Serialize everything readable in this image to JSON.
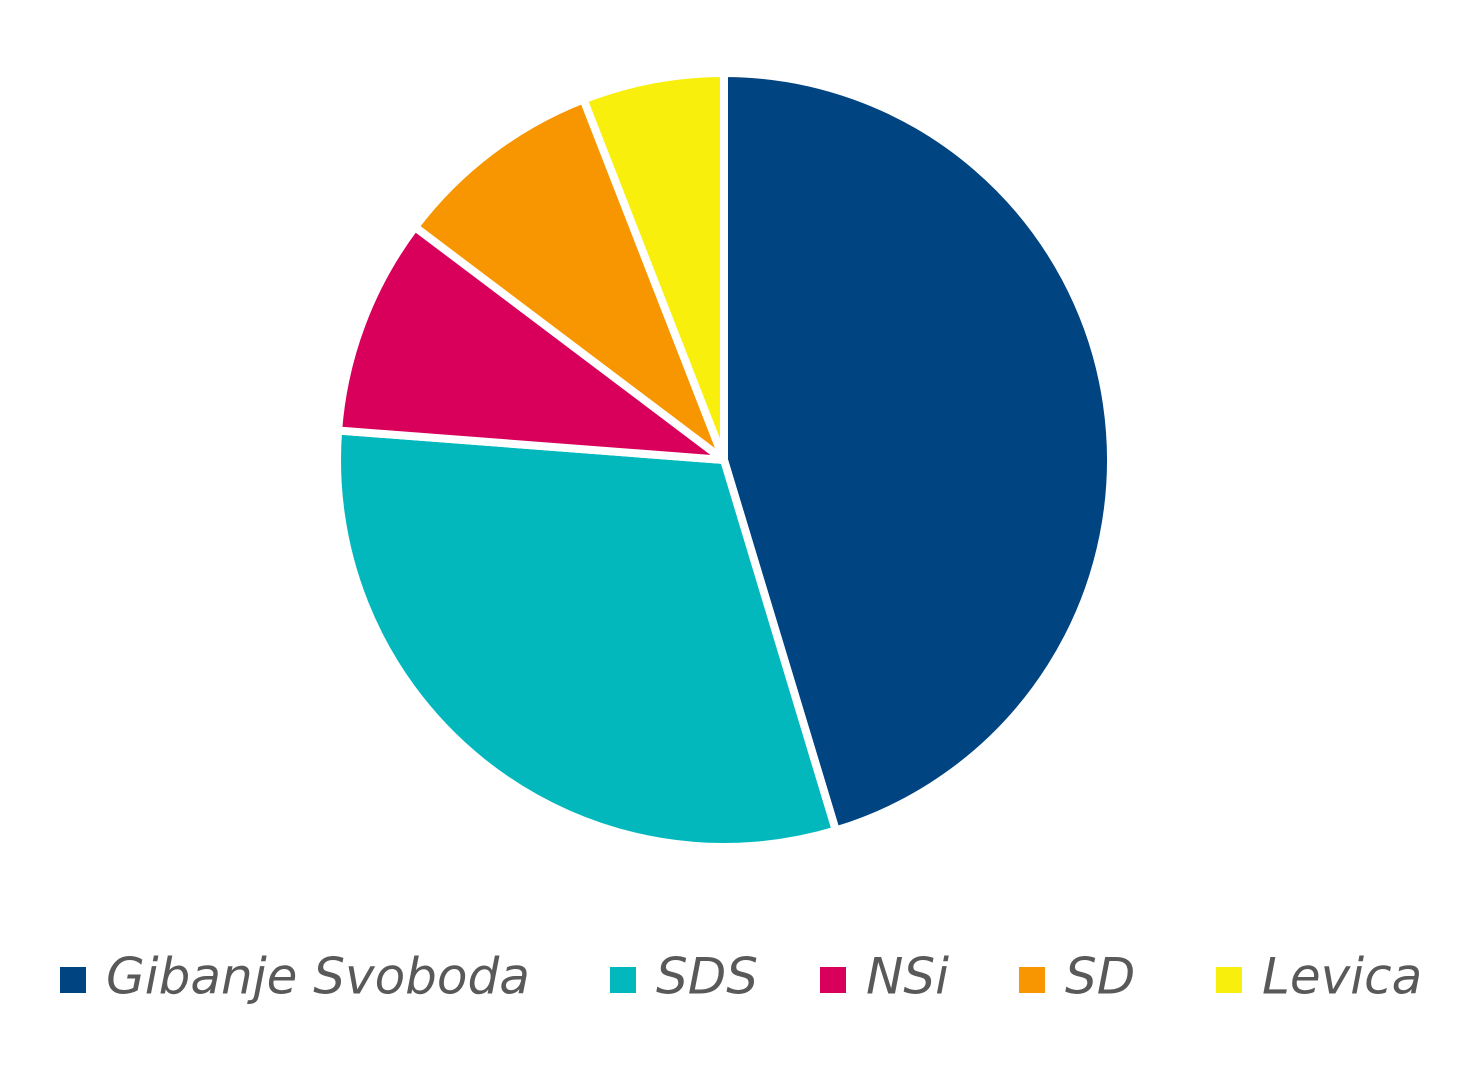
{
  "chart_data": {
    "type": "pie",
    "categories": [
      "Gibanje Svoboda",
      "SDS",
      "NSi",
      "SD",
      "Levica"
    ],
    "values": [
      34.5,
      23.5,
      6.9,
      6.7,
      4.5
    ],
    "colors": [
      "#004582",
      "#03b8bd",
      "#d9005b",
      "#f79600",
      "#f8ef0d"
    ],
    "legend": "bottom"
  }
}
